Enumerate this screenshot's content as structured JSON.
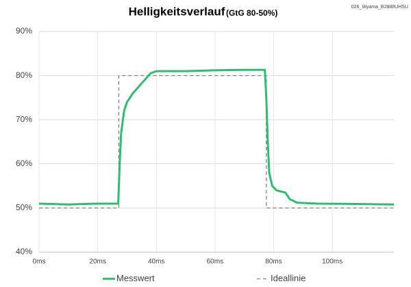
{
  "chart_data": {
    "type": "line",
    "title": "Helligkeitsverlauf",
    "subtitle": "(GtG 80-50%)",
    "annotation": "026_Iiliyama_B2888UHSU",
    "xlim": [
      0,
      121
    ],
    "ylim": [
      40,
      90
    ],
    "xticks": [
      {
        "value": 0,
        "label": "0ms"
      },
      {
        "value": 20,
        "label": "20ms"
      },
      {
        "value": 40,
        "label": "40ms"
      },
      {
        "value": 60,
        "label": "60ms"
      },
      {
        "value": 80,
        "label": "80ms"
      },
      {
        "value": 100,
        "label": "100ms"
      }
    ],
    "yticks": [
      {
        "value": 40,
        "label": "40%"
      },
      {
        "value": 50,
        "label": "50%"
      },
      {
        "value": 60,
        "label": "60%"
      },
      {
        "value": 70,
        "label": "70%"
      },
      {
        "value": 80,
        "label": "80%"
      },
      {
        "value": 90,
        "label": "90%"
      }
    ],
    "grid": true,
    "legend": "bottom",
    "series": [
      {
        "name": "Messwert",
        "color": "#2dbd6e",
        "style": "solid",
        "x": [
          0,
          10,
          20,
          27,
          27.5,
          28,
          29,
          30,
          32,
          34,
          36,
          38,
          40,
          45,
          50,
          60,
          70,
          77,
          77.5,
          78,
          78.5,
          79.5,
          81,
          84,
          85.5,
          88,
          95,
          110,
          121
        ],
        "values": [
          51,
          50.8,
          51,
          51,
          60,
          67,
          72,
          74,
          76,
          77.5,
          79,
          80.5,
          81,
          81,
          81,
          81.2,
          81.3,
          81.3,
          75,
          65,
          58,
          55,
          54,
          53.5,
          52,
          51.2,
          51,
          50.9,
          50.8
        ]
      },
      {
        "name": "Ideallinie",
        "color": "#808080",
        "style": "dashed",
        "x": [
          0,
          27.2,
          27.2,
          77.5,
          77.5,
          121
        ],
        "values": [
          50,
          50,
          80,
          80,
          50,
          50
        ]
      }
    ]
  }
}
